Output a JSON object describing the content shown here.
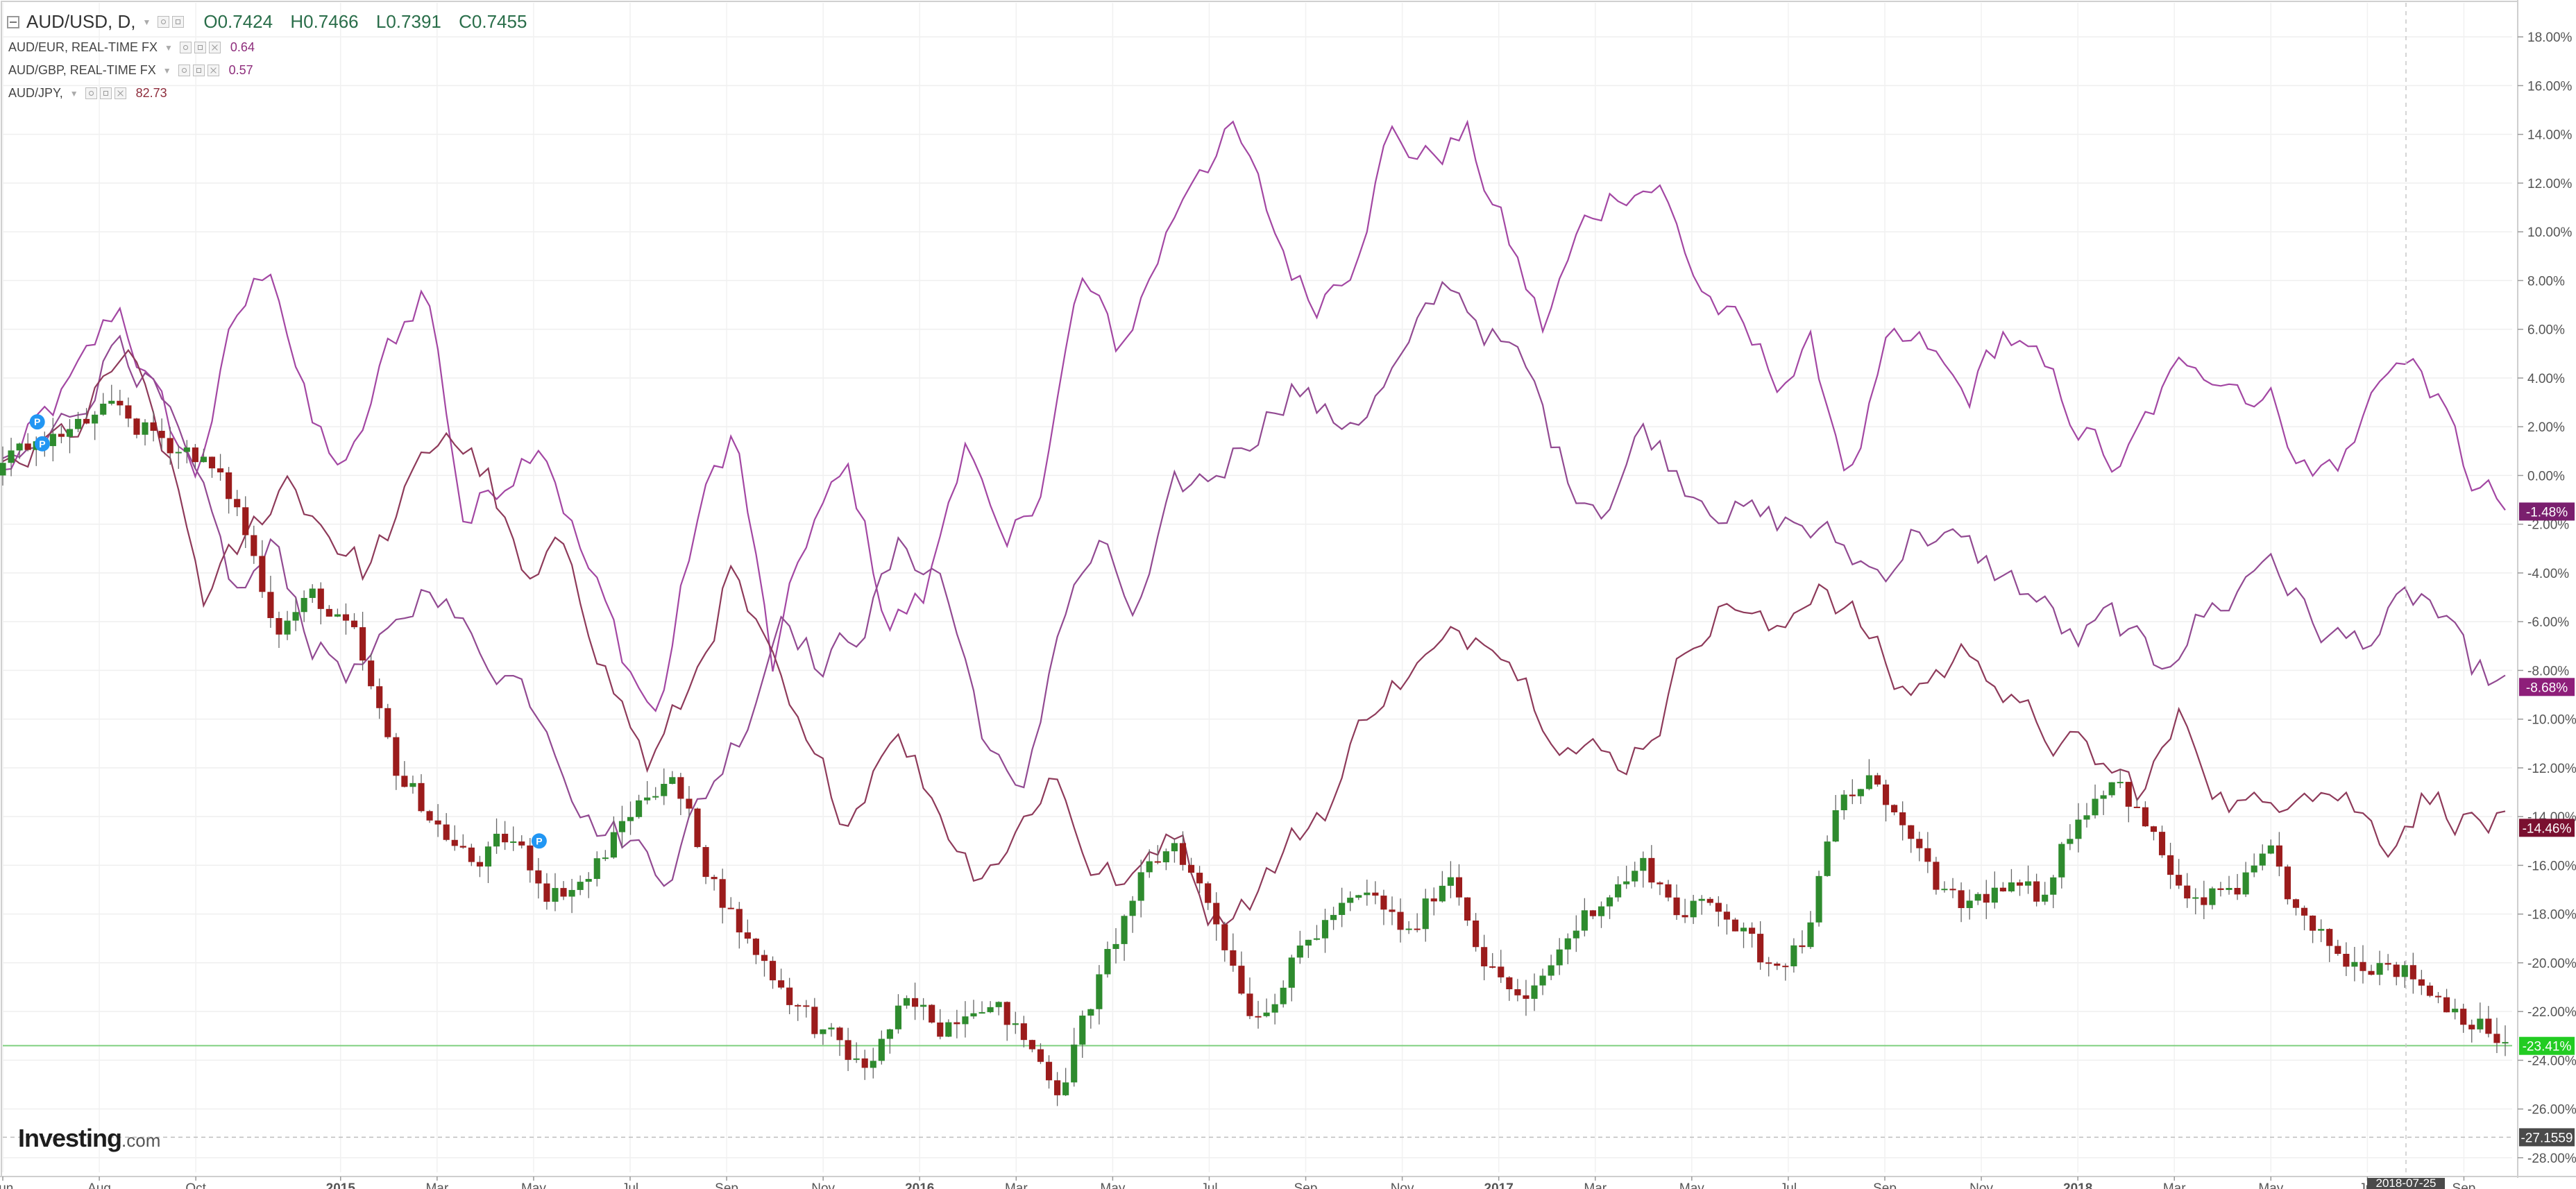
{
  "legend": {
    "main": {
      "symbol": "AUD/USD, D,",
      "open": "O0.7424",
      "high": "H0.7466",
      "low": "L0.7391",
      "close": "C0.7455"
    },
    "overlays": [
      {
        "name": "AUD/EUR, REAL-TIME FX",
        "value": "0.64",
        "color": "#8e2d7c"
      },
      {
        "name": "AUD/GBP, REAL-TIME FX",
        "value": "0.57",
        "color": "#8e2d7c"
      },
      {
        "name": "AUD/JPY,",
        "value": "82.73",
        "color": "#8e2d3c"
      }
    ]
  },
  "branding": {
    "logo_main": "Investing",
    "logo_suffix": ".com"
  },
  "colors": {
    "up_candle": "#2e8b2e",
    "down_candle": "#9b1c1c",
    "eur_line": "#a347a3",
    "gbp_line": "#924a92",
    "jpy_line": "#8e3a5a",
    "current_line": "#7fd07f",
    "eur_badge": "#7a1f6e",
    "gbp_badge": "#8e1f7a",
    "jpy_badge": "#7a1030",
    "usd_badge": "#22cc22",
    "cursor_badge": "#4a4a4a",
    "event_marker": "#2196f3"
  },
  "chart_data": {
    "type": "line",
    "x_axis_labels": [
      "Jun",
      "Aug",
      "Oct",
      "2015",
      "Mar",
      "May",
      "Jul",
      "Sep",
      "Nov",
      "2016",
      "Mar",
      "May",
      "Jul",
      "Sep",
      "Nov",
      "2017",
      "Mar",
      "May",
      "Jul",
      "Sep",
      "Nov",
      "2018",
      "Mar",
      "May",
      "Jul",
      "Sep"
    ],
    "y_axis_labels": [
      "18.00%",
      "16.00%",
      "14.00%",
      "12.00%",
      "10.00%",
      "8.00%",
      "6.00%",
      "4.00%",
      "2.00%",
      "0.00%",
      "-2.00%",
      "-4.00%",
      "-6.00%",
      "-8.00%",
      "-10.00%",
      "-12.00%",
      "-14.00%",
      "-16.00%",
      "-18.00%",
      "-20.00%",
      "-22.00%",
      "-24.00%",
      "-26.00%",
      "-28.00%"
    ],
    "y_ticks": [
      18,
      16,
      14,
      12,
      10,
      8,
      6,
      4,
      2,
      0,
      -2,
      -4,
      -6,
      -8,
      -10,
      -12,
      -14,
      -16,
      -18,
      -20,
      -22,
      -24,
      -26,
      -28
    ],
    "ylim": [
      -28.6,
      19.4
    ],
    "x_label_month_index": [
      0,
      2,
      4,
      7,
      9,
      11,
      13,
      15,
      17,
      19,
      21,
      23,
      25,
      27,
      29,
      31,
      33,
      35,
      37,
      39,
      41,
      43,
      45,
      47,
      49,
      51
    ],
    "x_month_range": [
      0,
      52
    ],
    "grid": true,
    "candle_count": 300,
    "series": [
      {
        "name": "AUD/USD",
        "style": "candlestick",
        "values": [
          0,
          1.5,
          2,
          2.5,
          1.5,
          1,
          -1.5,
          -6,
          -5,
          -7,
          -12,
          -14,
          -16,
          -15,
          -17,
          -16.5,
          -14,
          -12,
          -16,
          -19,
          -21,
          -23,
          -24.5,
          -22,
          -22.5,
          -21,
          -23,
          -25,
          -21,
          -17,
          -15,
          -18,
          -22,
          -20,
          -18,
          -17.5,
          -19,
          -16,
          -20,
          -22,
          -19,
          -17,
          -16,
          -18,
          -17.5,
          -20,
          -19,
          -13.5,
          -12.5,
          -16,
          -18,
          -17,
          -17.5,
          -14,
          -12,
          -15,
          -18,
          -17,
          -16,
          -19,
          -20,
          -19.5,
          -21,
          -22,
          -23.4
        ],
        "last_value_label": "-23.41%"
      },
      {
        "name": "AUD/EUR, REAL-TIME FX",
        "style": "line",
        "values": [
          0,
          2,
          4,
          7,
          3,
          0,
          6,
          9,
          2,
          0,
          5,
          8,
          -2,
          0,
          2,
          -3,
          -7,
          -10,
          -2,
          2,
          -8,
          -2,
          0,
          -6,
          -5,
          2,
          -4,
          0,
          8,
          5,
          9,
          13,
          14,
          10,
          7,
          9,
          14,
          13,
          14,
          10,
          6,
          10,
          12,
          12,
          8,
          6,
          4,
          5,
          0,
          5,
          5,
          3,
          6,
          4,
          2,
          0,
          3,
          5,
          4,
          3,
          0,
          1,
          5,
          4,
          0,
          -1.5
        ],
        "last_value_label": "-1.48%"
      },
      {
        "name": "AUD/GBP, REAL-TIME FX",
        "style": "line",
        "values": [
          0,
          1,
          3,
          6,
          3,
          -1,
          -5,
          -3,
          -7,
          -8,
          -7,
          -4,
          -7,
          -8,
          -10,
          -14,
          -15,
          -16,
          -13,
          -10,
          -5,
          -8,
          -6,
          -3,
          -4,
          -10,
          -14,
          -6,
          -3,
          -6,
          -1,
          0,
          2,
          4,
          2,
          3,
          5,
          8,
          6,
          4,
          0,
          -1,
          2,
          0,
          -1,
          -2,
          -2,
          -3,
          -4,
          -2,
          -3,
          -4,
          -5,
          -7,
          -6,
          -8,
          -6,
          -5,
          -3,
          -6,
          -7,
          -6,
          -5,
          -8,
          -8.7
        ],
        "last_value_label": "-8.68%"
      },
      {
        "name": "AUD/JPY,",
        "style": "line",
        "values": [
          0,
          1,
          2,
          5,
          1,
          -5,
          -3,
          0,
          -2,
          -4,
          -1,
          2,
          0,
          -5,
          -3,
          -8,
          -12,
          -9,
          -4,
          -8,
          -12,
          -14,
          -10,
          -13,
          -16,
          -15,
          -12,
          -16,
          -17,
          -14,
          -18,
          -17,
          -15,
          -13,
          -9,
          -8,
          -7,
          -6,
          -9,
          -11,
          -12,
          -10,
          -6,
          -5,
          -7,
          -4,
          -6,
          -9,
          -8,
          -7,
          -10,
          -11,
          -12,
          -13,
          -10,
          -13,
          -14,
          -12,
          -13,
          -15,
          -13,
          -14,
          -14.5
        ],
        "last_value_label": "-14.46%"
      }
    ],
    "price_scale_extra_label": "-27.1559",
    "crosshair_x_label": "2018-07-25",
    "event_markers": [
      "P",
      "P",
      "P"
    ]
  }
}
